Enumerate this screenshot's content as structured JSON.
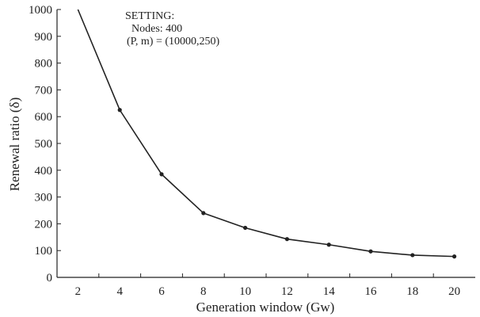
{
  "chart_data": {
    "type": "line",
    "title": "",
    "xlabel": "Generation window (Gw)",
    "ylabel": "Renewal ratio (δ)",
    "x": [
      2,
      4,
      6,
      8,
      10,
      12,
      14,
      16,
      18,
      20
    ],
    "series": [
      {
        "values": [
          1000,
          625,
          385,
          240,
          185,
          143,
          122,
          97,
          83,
          78
        ]
      }
    ],
    "xlim": [
      1,
      21
    ],
    "ylim": [
      0,
      1000
    ],
    "x_ticks": [
      "2",
      "4",
      "6",
      "8",
      "10",
      "12",
      "14",
      "16",
      "18",
      "20"
    ],
    "y_ticks": [
      "0",
      "100",
      "200",
      "300",
      "400",
      "500",
      "600",
      "700",
      "800",
      "900",
      "1000"
    ],
    "grid": false,
    "markers": "dot",
    "line_color": "#222222",
    "annotation": {
      "heading": "SETTING:",
      "line1": "Nodes: 400",
      "line2": "(P, m) = (10000,250)"
    }
  }
}
